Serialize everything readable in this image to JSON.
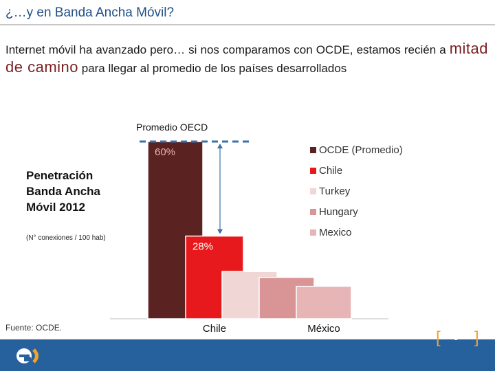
{
  "slide": {
    "title": "¿…y en Banda Ancha Móvil?",
    "intro_before": "Internet móvil ha avanzado pero… si nos comparamos con OCDE, estamos recién a ",
    "intro_emphasis": "mitad de camino",
    "intro_after": " para llegar al promedio de los países desarrollados",
    "oecd_average_label": "Promedio OECD",
    "side_title": "Penetración Banda Ancha Móvil 2012",
    "side_note": "(N° conexiones / 100 hab)",
    "source": "Fuente: OCDE.",
    "page_number": "8",
    "bracket_left": "[",
    "bracket_right": "]"
  },
  "chart_data": {
    "type": "bar",
    "title": "",
    "categories": [
      "OCDE (Promedio)",
      "Chile",
      "Turkey",
      "Hungary",
      "Mexico"
    ],
    "values": [
      60,
      28,
      16,
      14,
      11
    ],
    "data_labels": [
      "60%",
      "28%",
      "",
      "",
      ""
    ],
    "x_tick_labels": [
      "",
      "Chile",
      "",
      "",
      "México"
    ],
    "colors": [
      "#5b2222",
      "#e8191c",
      "#f0d6d5",
      "#d99495",
      "#e8b5b6"
    ],
    "legend": [
      "OCDE (Promedio)",
      "Chile",
      "Turkey",
      "Hungary",
      "Mexico"
    ],
    "legend_position": "right",
    "ylim": [
      0,
      60
    ],
    "grid": false
  }
}
